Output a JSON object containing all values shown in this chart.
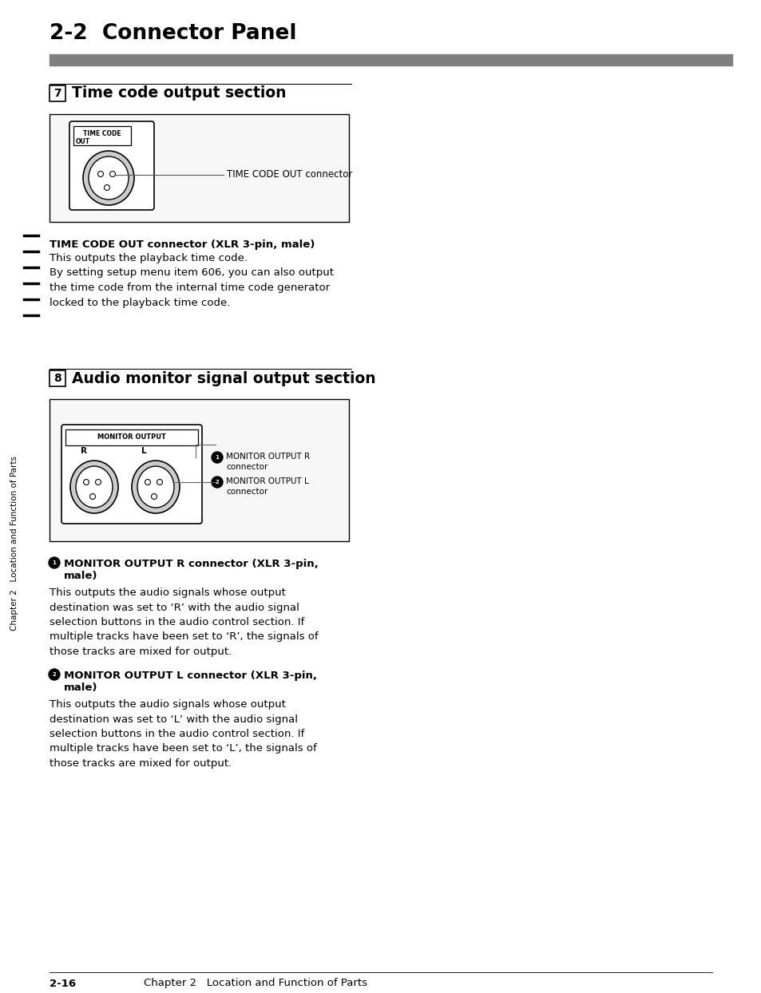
{
  "title": "2-2  Connector Panel",
  "section7_title": "Time code output section",
  "section7_num": "7",
  "section8_title": "Audio monitor signal output section",
  "section8_num": "8",
  "tc_label1": "TIME CODE",
  "tc_label2": "OUT",
  "tc_arrow_label": "TIME CODE OUT connector",
  "monitor_label": "MONITOR OUTPUT",
  "monitor_r_label": "R",
  "monitor_l_label": "L",
  "monitor_r_arrow": "MONITOR OUTPUT R\nconnector",
  "monitor_l_arrow": "MONITOR OUTPUT L\nconnector",
  "bold1_title": "TIME CODE OUT connector (XLR 3-pin, male)",
  "bold1_text": "This outputs the playback time code.\nBy setting setup menu item 606, you can also output\nthe time code from the internal time code generator\nlocked to the playback time code.",
  "bold2_title": "MONITOR OUTPUT R connector (XLR 3-pin,\nmale)",
  "bold2_text": "This outputs the audio signals whose output\ndestination was set to ‘R’ with the audio signal\nselection buttons in the audio control section. If\nmultiple tracks have been set to ‘R’, the signals of\nthose tracks are mixed for output.",
  "bold3_title": "MONITOR OUTPUT L connector (XLR 3-pin,\nmale)",
  "bold3_text": "This outputs the audio signals whose output\ndestination was set to ‘L’ with the audio signal\nselection buttons in the audio control section. If\nmultiple tracks have been set to ‘L’, the signals of\nthose tracks are mixed for output.",
  "footer_left": "2-16",
  "footer_right": "Chapter 2   Location and Function of Parts",
  "sidebar_text": "Chapter 2   Location and Function of Parts",
  "bg_color": "#ffffff",
  "title_bar_color": "#7f7f7f",
  "text_color": "#000000"
}
